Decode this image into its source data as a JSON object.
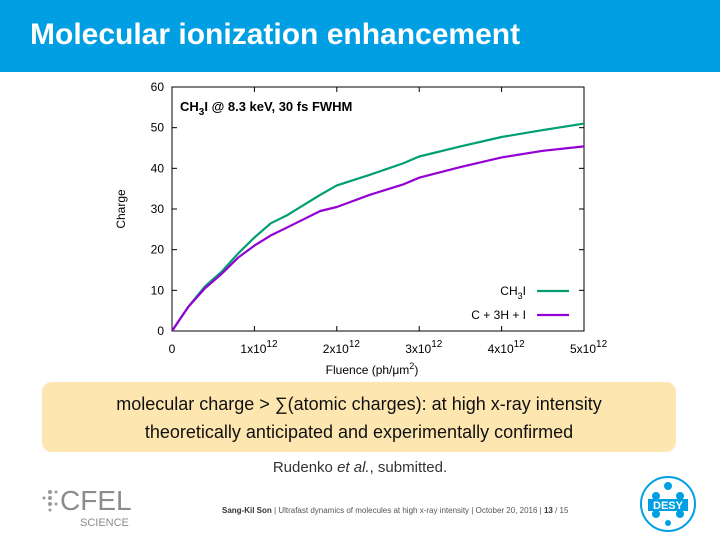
{
  "slide": {
    "title": "Molecular ionization enhancement",
    "callout_line1": "molecular charge > ∑(atomic charges): at high x-ray intensity",
    "callout_line2": "theoretically anticipated and experimentally confirmed",
    "citation_author": "Rudenko ",
    "citation_etal": "et al.",
    "citation_rest": ", submitted."
  },
  "footer": {
    "author": "Sang-Kil Son",
    "sep1": " | ",
    "talk": "Ultrafast dynamics of molecules at high x-ray intensity",
    "sep2": " | ",
    "date": "October 20, 2016",
    "sep3": " | ",
    "page": "13",
    "page_sep": " / ",
    "total": "15"
  },
  "logos": {
    "cfel_text": "CFEL",
    "science_text": "SCIENCE",
    "desy_text": "DESY"
  },
  "colors": {
    "title_bar": "#009fe3",
    "callout_bg": "#fde6b0",
    "series_ch3i": "#009e73",
    "series_atomic": "#9400d3"
  },
  "chart_data": {
    "type": "line",
    "annotation": {
      "main": "CH",
      "sub": "3",
      "rest": "I @ 8.3 keV, 30 fs FWHM"
    },
    "xlabel": {
      "main": "Fluence (ph/μm",
      "sup": "2",
      "tail": ")"
    },
    "ylabel": "Charge",
    "xlim": [
      0,
      5000000000000.0
    ],
    "ylim": [
      0,
      60
    ],
    "grid": false,
    "legend_position": "bottom-right",
    "x_ticks": [
      {
        "value": 0,
        "label": "0",
        "exp": ""
      },
      {
        "value": 1000000000000.0,
        "label": "1x10",
        "exp": "12"
      },
      {
        "value": 2000000000000.0,
        "label": "2x10",
        "exp": "12"
      },
      {
        "value": 3000000000000.0,
        "label": "3x10",
        "exp": "12"
      },
      {
        "value": 4000000000000.0,
        "label": "4x10",
        "exp": "12"
      },
      {
        "value": 5000000000000.0,
        "label": "5x10",
        "exp": "12"
      }
    ],
    "y_ticks": [
      {
        "value": 0,
        "label": "0"
      },
      {
        "value": 10,
        "label": "10"
      },
      {
        "value": 20,
        "label": "20"
      },
      {
        "value": 30,
        "label": "30"
      },
      {
        "value": 40,
        "label": "40"
      },
      {
        "value": 50,
        "label": "50"
      },
      {
        "value": 60,
        "label": "60"
      }
    ],
    "series": [
      {
        "name": "CH3I",
        "legend": {
          "main": "CH",
          "sub": "3",
          "rest": "I"
        },
        "color": "#009e73",
        "points": [
          [
            0,
            0
          ],
          [
            100000000000.0,
            3
          ],
          [
            200000000000.0,
            6
          ],
          [
            400000000000.0,
            11
          ],
          [
            600000000000.0,
            14.5
          ],
          [
            800000000000.0,
            19
          ],
          [
            1000000000000.0,
            23
          ],
          [
            1200000000000.0,
            26.5
          ],
          [
            1400000000000.0,
            28.5
          ],
          [
            1600000000000.0,
            31
          ],
          [
            1800000000000.0,
            33.5
          ],
          [
            2000000000000.0,
            35.8
          ],
          [
            2400000000000.0,
            38.4
          ],
          [
            2800000000000.0,
            41.2
          ],
          [
            3000000000000.0,
            42.9
          ],
          [
            3500000000000.0,
            45.4
          ],
          [
            4000000000000.0,
            47.7
          ],
          [
            4500000000000.0,
            49.4
          ],
          [
            5000000000000.0,
            51
          ]
        ]
      },
      {
        "name": "C + 3H + I",
        "legend": {
          "main": "C + 3H + I",
          "sub": "",
          "rest": ""
        },
        "color": "#9400d3",
        "points": [
          [
            0,
            0
          ],
          [
            100000000000.0,
            3
          ],
          [
            200000000000.0,
            6
          ],
          [
            400000000000.0,
            10.5
          ],
          [
            600000000000.0,
            14
          ],
          [
            800000000000.0,
            18
          ],
          [
            1000000000000.0,
            21
          ],
          [
            1200000000000.0,
            23.5
          ],
          [
            1400000000000.0,
            25.5
          ],
          [
            1600000000000.0,
            27.5
          ],
          [
            1800000000000.0,
            29.5
          ],
          [
            2000000000000.0,
            30.5
          ],
          [
            2400000000000.0,
            33.5
          ],
          [
            2800000000000.0,
            36
          ],
          [
            3000000000000.0,
            37.7
          ],
          [
            3500000000000.0,
            40.3
          ],
          [
            4000000000000.0,
            42.7
          ],
          [
            4500000000000.0,
            44.3
          ],
          [
            5000000000000.0,
            45.4
          ]
        ]
      }
    ]
  }
}
